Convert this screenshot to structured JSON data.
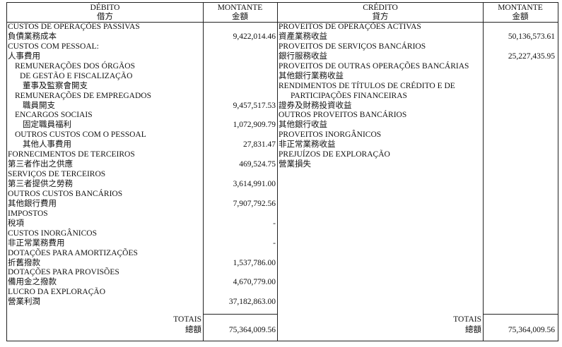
{
  "debit": {
    "header": {
      "title": "DÉBITO",
      "title_zh": "借方",
      "amount": "MONTANTE",
      "amount_zh": "金額"
    },
    "rows": [
      {
        "label": "CUSTOS DE OPERAÇÕES PASSIVAS",
        "level": 0,
        "amount": ""
      },
      {
        "label": "負債業務成本",
        "level": 0,
        "amount": "9,422,014.46"
      },
      {
        "label": "CUSTOS COM PESSOAL:",
        "level": 0,
        "amount": ""
      },
      {
        "label": "人事費用",
        "level": 0,
        "amount": ""
      },
      {
        "label": "REMUNERAÇÕES DOS ÓRGÃOS",
        "level": 1,
        "amount": ""
      },
      {
        "label": "DE GESTÃO E FISCALIZAÇÃO",
        "level": 2,
        "amount": ""
      },
      {
        "label": "董事及監察會開支",
        "level": 3,
        "amount": ""
      },
      {
        "label": "REMUNERAÇÕES DE EMPREGADOS",
        "level": 1,
        "amount": ""
      },
      {
        "label": "職員開支",
        "level": 3,
        "amount": "9,457,517.53"
      },
      {
        "label": "ENCARGOS SOCIAIS",
        "level": 1,
        "amount": ""
      },
      {
        "label": "固定職員福利",
        "level": 3,
        "amount": "1,072,909.79"
      },
      {
        "label": "OUTROS CUSTOS COM O PESSOAL",
        "level": 1,
        "amount": ""
      },
      {
        "label": "其他人事費用",
        "level": 3,
        "amount": "27,831.47"
      },
      {
        "label": "FORNECIMENTOS DE TERCEIROS",
        "level": 0,
        "amount": ""
      },
      {
        "label": "第三者作出之供應",
        "level": 0,
        "amount": "469,524.75"
      },
      {
        "label": "SERVIÇOS DE TERCEIROS",
        "level": 0,
        "amount": ""
      },
      {
        "label": "第三者提供之勞務",
        "level": 0,
        "amount": "3,614,991.00"
      },
      {
        "label": "OUTROS CUSTOS BANCÁRIOS",
        "level": 0,
        "amount": ""
      },
      {
        "label": "其他銀行費用",
        "level": 0,
        "amount": "7,907,792.56"
      },
      {
        "label": "IMPOSTOS",
        "level": 0,
        "amount": ""
      },
      {
        "label": "稅項",
        "level": 0,
        "amount": "-"
      },
      {
        "label": "CUSTOS INORGÂNICOS",
        "level": 0,
        "amount": ""
      },
      {
        "label": "非正常業務費用",
        "level": 0,
        "amount": "-"
      },
      {
        "label": "DOTAÇÕES PARA AMORTIZAÇÕES",
        "level": 0,
        "amount": ""
      },
      {
        "label": "折舊撥款",
        "level": 0,
        "amount": "1,537,786.00"
      },
      {
        "label": "DOTAÇÕES PARA PROVISÕES",
        "level": 0,
        "amount": ""
      },
      {
        "label": "備用金之撥款",
        "level": 0,
        "amount": "4,670,779.00"
      },
      {
        "label": "LUCRO DA EXPLORAÇÃO",
        "level": 0,
        "amount": ""
      },
      {
        "label": "營業利潤",
        "level": 0,
        "amount": "37,182,863.00"
      }
    ],
    "totals": {
      "label": "TOTAIS",
      "label_zh": "總額",
      "amount": "75,364,009.56"
    }
  },
  "credit": {
    "header": {
      "title": "CRÉDITO",
      "title_zh": "貸方",
      "amount": "MONTANTE",
      "amount_zh": "金額"
    },
    "rows": [
      {
        "label": "PROVEITOS DE OPERAÇÕES ACTIVAS",
        "level": 0,
        "amount": ""
      },
      {
        "label": "資產業務收益",
        "level": 0,
        "amount": "50,136,573.61"
      },
      {
        "label": "PROVEITOS DE SERVIÇOS BANCÁRIOS",
        "level": 0,
        "amount": ""
      },
      {
        "label": "銀行服務收益",
        "level": 0,
        "amount": "25,227,435.95"
      },
      {
        "label": "PROVEITOS DE OUTRAS OPERAÇÕES BANCÁRIAS",
        "level": 0,
        "amount": ""
      },
      {
        "label": "其他銀行業務收益",
        "level": 0,
        "amount": ""
      },
      {
        "label": "RENDIMENTOS DE TÍTULOS DE CRÉDITO E DE",
        "level": 0,
        "amount": ""
      },
      {
        "label": "PARTICIPAÇÕES FINANCEIRAS",
        "level": 2,
        "amount": ""
      },
      {
        "label": "證券及財務投資收益",
        "level": 0,
        "amount": ""
      },
      {
        "label": "OUTROS PROVEITOS BANCÁRIOS",
        "level": 0,
        "amount": ""
      },
      {
        "label": "其他銀行收益",
        "level": 0,
        "amount": ""
      },
      {
        "label": "PROVEITOS INORGÂNICOS",
        "level": 0,
        "amount": ""
      },
      {
        "label": "非正常業務收益",
        "level": 0,
        "amount": ""
      },
      {
        "label": "PREJUÍZOS DE EXPLORAÇÃO",
        "level": 0,
        "amount": ""
      },
      {
        "label": "營業損失",
        "level": 0,
        "amount": ""
      }
    ],
    "totals": {
      "label": "TOTAIS",
      "label_zh": "總額",
      "amount": "75,364,009.56"
    }
  }
}
